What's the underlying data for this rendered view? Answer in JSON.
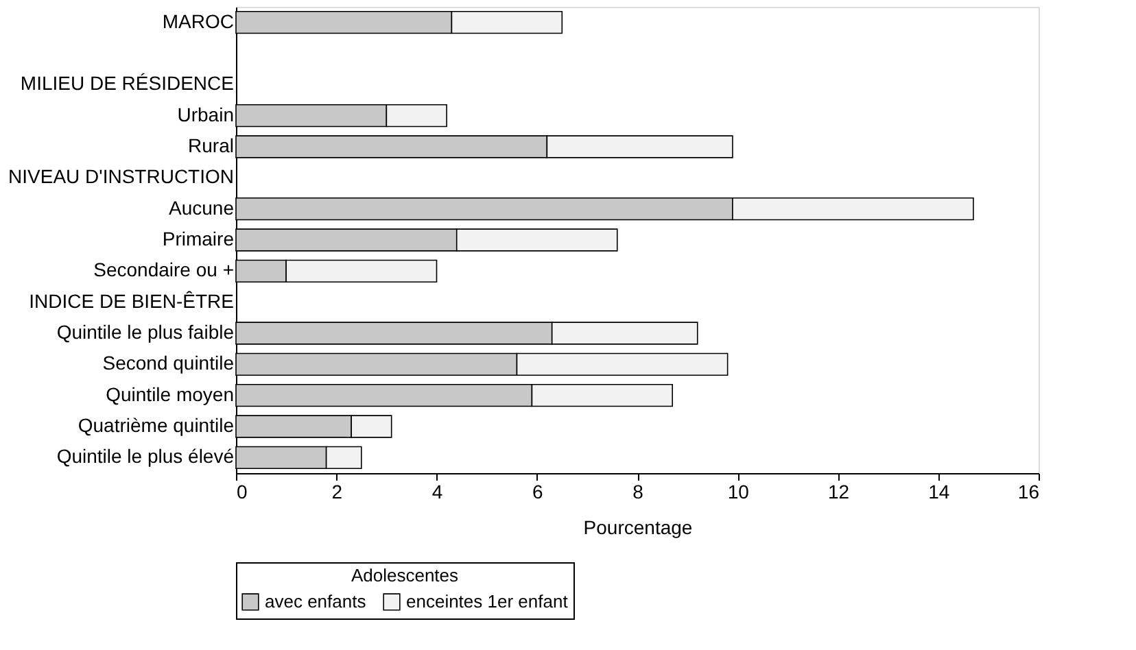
{
  "chart_data": {
    "type": "bar",
    "orientation": "horizontal",
    "stacked": true,
    "categories": [
      "MAROC",
      null,
      "MILIEU DE RÉSIDENCE",
      "Urbain",
      "Rural",
      "NIVEAU D'INSTRUCTION",
      "Aucune",
      "Primaire",
      "Secondaire ou +",
      "INDICE DE BIEN-ÊTRE",
      "Quintile le plus faible",
      "Second quintile",
      "Quintile moyen",
      "Quatrième quintile",
      "Quintile le plus élevé"
    ],
    "series": [
      {
        "name": "avec enfants",
        "color": "#c8c8c8",
        "values": [
          4.3,
          null,
          null,
          3.0,
          6.2,
          null,
          9.9,
          4.4,
          1.0,
          null,
          6.3,
          5.6,
          5.9,
          2.3,
          1.8
        ]
      },
      {
        "name": "enceintes 1er enfant",
        "color": "#f2f2f2",
        "values": [
          2.2,
          null,
          null,
          1.2,
          3.7,
          null,
          4.8,
          3.2,
          3.0,
          null,
          2.9,
          4.2,
          2.8,
          0.8,
          0.7
        ]
      }
    ],
    "xlabel": "Pourcentage",
    "legend_title": "Adolescentes",
    "legend": "bottom",
    "grid": false,
    "xlim": [
      0,
      16
    ],
    "xticks": [
      0,
      2,
      4,
      6,
      8,
      10,
      12,
      14,
      16
    ]
  }
}
